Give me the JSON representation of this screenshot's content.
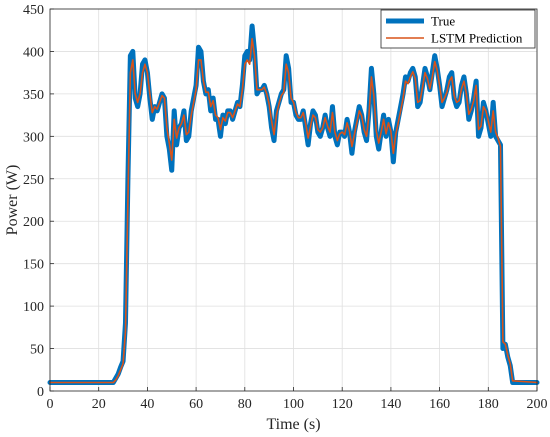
{
  "chart_data": {
    "type": "line",
    "xlabel": "Time (s)",
    "ylabel": "Power (W)",
    "xlim": [
      0,
      200
    ],
    "ylim": [
      0,
      450
    ],
    "xticks": [
      0,
      20,
      40,
      60,
      80,
      100,
      120,
      140,
      160,
      180,
      200
    ],
    "yticks": [
      0,
      50,
      100,
      150,
      200,
      250,
      300,
      350,
      400,
      450
    ],
    "grid": true,
    "legend_position": "top-right",
    "series": [
      {
        "name": "True",
        "color": "#0072BD",
        "x": [
          0,
          26,
          27,
          28,
          29,
          30,
          31,
          32,
          33,
          34,
          35,
          36,
          37,
          38,
          39,
          40,
          41,
          42,
          43,
          44,
          45,
          46,
          47,
          48,
          49,
          50,
          51,
          52,
          53,
          54,
          55,
          56,
          57,
          58,
          59,
          60,
          61,
          62,
          63,
          64,
          65,
          66,
          67,
          68,
          69,
          70,
          71,
          72,
          73,
          74,
          75,
          76,
          77,
          78,
          79,
          80,
          81,
          82,
          83,
          84,
          85,
          86,
          87,
          88,
          89,
          90,
          91,
          92,
          93,
          94,
          95,
          96,
          97,
          98,
          99,
          100,
          101,
          102,
          103,
          104,
          105,
          106,
          107,
          108,
          109,
          110,
          111,
          112,
          113,
          114,
          115,
          116,
          117,
          118,
          119,
          120,
          121,
          122,
          123,
          124,
          125,
          126,
          127,
          128,
          129,
          130,
          131,
          132,
          133,
          134,
          135,
          136,
          137,
          138,
          139,
          140,
          141,
          142,
          143,
          144,
          145,
          146,
          147,
          148,
          149,
          150,
          151,
          152,
          153,
          154,
          155,
          156,
          157,
          158,
          159,
          160,
          161,
          162,
          163,
          164,
          165,
          166,
          167,
          168,
          169,
          170,
          171,
          172,
          173,
          174,
          175,
          176,
          177,
          178,
          179,
          180,
          181,
          182,
          183,
          184,
          185,
          186,
          187,
          188,
          189,
          190,
          200
        ],
        "y": [
          10,
          10,
          15,
          20,
          28,
          35,
          80,
          250,
          395,
          400,
          345,
          335,
          350,
          385,
          390,
          375,
          345,
          320,
          335,
          330,
          340,
          350,
          345,
          300,
          285,
          260,
          330,
          290,
          310,
          315,
          330,
          295,
          300,
          330,
          345,
          360,
          405,
          400,
          365,
          350,
          355,
          330,
          345,
          320,
          320,
          300,
          325,
          315,
          330,
          330,
          320,
          330,
          340,
          335,
          360,
          395,
          400,
          390,
          430,
          400,
          350,
          355,
          355,
          360,
          350,
          335,
          310,
          295,
          330,
          340,
          350,
          355,
          395,
          380,
          340,
          340,
          325,
          320,
          320,
          330,
          310,
          290,
          315,
          330,
          325,
          305,
          300,
          310,
          325,
          310,
          300,
          335,
          300,
          290,
          305,
          305,
          300,
          320,
          305,
          280,
          305,
          320,
          335,
          325,
          305,
          295,
          330,
          380,
          350,
          300,
          285,
          305,
          325,
          300,
          320,
          305,
          270,
          305,
          320,
          335,
          350,
          370,
          365,
          375,
          380,
          370,
          335,
          340,
          360,
          380,
          370,
          355,
          375,
          395,
          380,
          360,
          335,
          345,
          355,
          370,
          375,
          345,
          335,
          340,
          360,
          370,
          350,
          320,
          330,
          345,
          365,
          300,
          310,
          340,
          330,
          315,
          300,
          340,
          300,
          295,
          290,
          50,
          55,
          40,
          30,
          10,
          10
        ]
      },
      {
        "name": "LSTM Prediction",
        "color": "#D95319",
        "x": [
          0,
          26,
          27,
          28,
          29,
          30,
          31,
          32,
          33,
          34,
          35,
          36,
          37,
          38,
          39,
          40,
          41,
          42,
          43,
          44,
          45,
          46,
          47,
          48,
          49,
          50,
          51,
          52,
          53,
          54,
          55,
          56,
          57,
          58,
          59,
          60,
          61,
          62,
          63,
          64,
          65,
          66,
          67,
          68,
          69,
          70,
          71,
          72,
          73,
          74,
          75,
          76,
          77,
          78,
          79,
          80,
          81,
          82,
          83,
          84,
          85,
          86,
          87,
          88,
          89,
          90,
          91,
          92,
          93,
          94,
          95,
          96,
          97,
          98,
          99,
          100,
          101,
          102,
          103,
          104,
          105,
          106,
          107,
          108,
          109,
          110,
          111,
          112,
          113,
          114,
          115,
          116,
          117,
          118,
          119,
          120,
          121,
          122,
          123,
          124,
          125,
          126,
          127,
          128,
          129,
          130,
          131,
          132,
          133,
          134,
          135,
          136,
          137,
          138,
          139,
          140,
          141,
          142,
          143,
          144,
          145,
          146,
          147,
          148,
          149,
          150,
          151,
          152,
          153,
          154,
          155,
          156,
          157,
          158,
          159,
          160,
          161,
          162,
          163,
          164,
          165,
          166,
          167,
          168,
          169,
          170,
          171,
          172,
          173,
          174,
          175,
          176,
          177,
          178,
          179,
          180,
          181,
          182,
          183,
          184,
          185,
          186,
          187,
          188,
          189,
          190,
          200
        ],
        "y": [
          10,
          10,
          13,
          18,
          25,
          32,
          70,
          225,
          375,
          390,
          350,
          340,
          350,
          375,
          385,
          375,
          350,
          328,
          335,
          332,
          340,
          348,
          345,
          310,
          292,
          272,
          320,
          298,
          310,
          315,
          325,
          302,
          305,
          325,
          340,
          355,
          390,
          390,
          365,
          352,
          352,
          335,
          342,
          325,
          322,
          308,
          322,
          318,
          328,
          328,
          322,
          330,
          338,
          335,
          355,
          385,
          390,
          385,
          415,
          395,
          355,
          355,
          355,
          358,
          350,
          338,
          318,
          302,
          325,
          338,
          348,
          352,
          385,
          375,
          345,
          340,
          328,
          322,
          322,
          328,
          315,
          298,
          312,
          325,
          322,
          308,
          305,
          310,
          322,
          312,
          305,
          328,
          305,
          295,
          303,
          305,
          302,
          316,
          306,
          288,
          302,
          316,
          330,
          324,
          308,
          300,
          325,
          370,
          348,
          306,
          292,
          305,
          320,
          303,
          316,
          306,
          280,
          302,
          316,
          330,
          345,
          365,
          362,
          370,
          376,
          368,
          340,
          342,
          358,
          375,
          368,
          356,
          370,
          388,
          378,
          360,
          340,
          345,
          352,
          365,
          370,
          348,
          340,
          342,
          356,
          365,
          350,
          326,
          332,
          342,
          360,
          308,
          312,
          335,
          330,
          318,
          305,
          330,
          305,
          298,
          288,
          58,
          55,
          42,
          32,
          12,
          10
        ]
      }
    ]
  }
}
